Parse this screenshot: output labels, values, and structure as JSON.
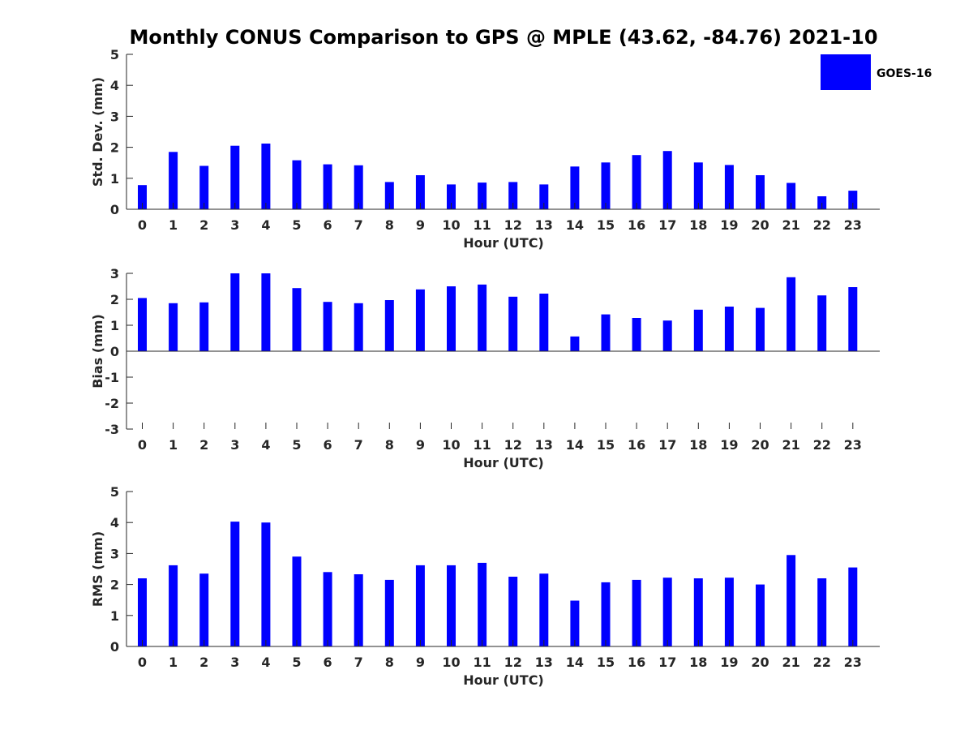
{
  "title": "Monthly CONUS Comparison to GPS @ MPLE (43.62, -84.76) 2021-10",
  "legend": {
    "label": "GOES-16",
    "color": "#0000ff",
    "placement": "top-right"
  },
  "chart_data": [
    {
      "type": "bar",
      "xlabel": "Hour (UTC)",
      "ylabel": "Std. Dev. (mm)",
      "ylim": [
        0,
        5
      ],
      "yticks": [
        "0",
        "1",
        "2",
        "3",
        "4",
        "5"
      ],
      "categories": [
        "0",
        "1",
        "2",
        "3",
        "4",
        "5",
        "6",
        "7",
        "8",
        "9",
        "10",
        "11",
        "12",
        "13",
        "14",
        "15",
        "16",
        "17",
        "18",
        "19",
        "20",
        "21",
        "22",
        "23"
      ],
      "series": [
        {
          "name": "GOES-16",
          "color": "#0000ff",
          "values": [
            0.78,
            1.85,
            1.4,
            2.05,
            2.12,
            1.58,
            1.45,
            1.42,
            0.88,
            1.1,
            0.8,
            0.86,
            0.88,
            0.8,
            1.38,
            1.51,
            1.75,
            1.88,
            1.51,
            1.43,
            1.1,
            0.85,
            0.42,
            0.6
          ]
        }
      ]
    },
    {
      "type": "bar",
      "xlabel": "Hour (UTC)",
      "ylabel": "Bias (mm)",
      "ylim": [
        -3,
        3
      ],
      "yticks": [
        "-3",
        "-2",
        "-1",
        "0",
        "1",
        "2",
        "3"
      ],
      "categories": [
        "0",
        "1",
        "2",
        "3",
        "4",
        "5",
        "6",
        "7",
        "8",
        "9",
        "10",
        "11",
        "12",
        "13",
        "14",
        "15",
        "16",
        "17",
        "18",
        "19",
        "20",
        "21",
        "22",
        "23"
      ],
      "series": [
        {
          "name": "GOES-16",
          "color": "#0000ff",
          "values": [
            2.05,
            1.85,
            1.88,
            3.0,
            3.0,
            2.43,
            1.9,
            1.85,
            1.97,
            2.38,
            2.5,
            2.57,
            2.1,
            2.22,
            0.57,
            1.42,
            1.28,
            1.18,
            1.6,
            1.72,
            1.67,
            2.85,
            2.15,
            2.47
          ]
        }
      ]
    },
    {
      "type": "bar",
      "xlabel": "Hour (UTC)",
      "ylabel": "RMS (mm)",
      "ylim": [
        0,
        5
      ],
      "yticks": [
        "0",
        "1",
        "2",
        "3",
        "4",
        "5"
      ],
      "categories": [
        "0",
        "1",
        "2",
        "3",
        "4",
        "5",
        "6",
        "7",
        "8",
        "9",
        "10",
        "11",
        "12",
        "13",
        "14",
        "15",
        "16",
        "17",
        "18",
        "19",
        "20",
        "21",
        "22",
        "23"
      ],
      "series": [
        {
          "name": "GOES-16",
          "color": "#0000ff",
          "values": [
            2.2,
            2.62,
            2.35,
            4.03,
            4.0,
            2.9,
            2.4,
            2.33,
            2.15,
            2.62,
            2.62,
            2.7,
            2.25,
            2.35,
            1.48,
            2.07,
            2.15,
            2.22,
            2.2,
            2.22,
            2.0,
            2.95,
            2.2,
            2.55
          ]
        }
      ]
    }
  ]
}
